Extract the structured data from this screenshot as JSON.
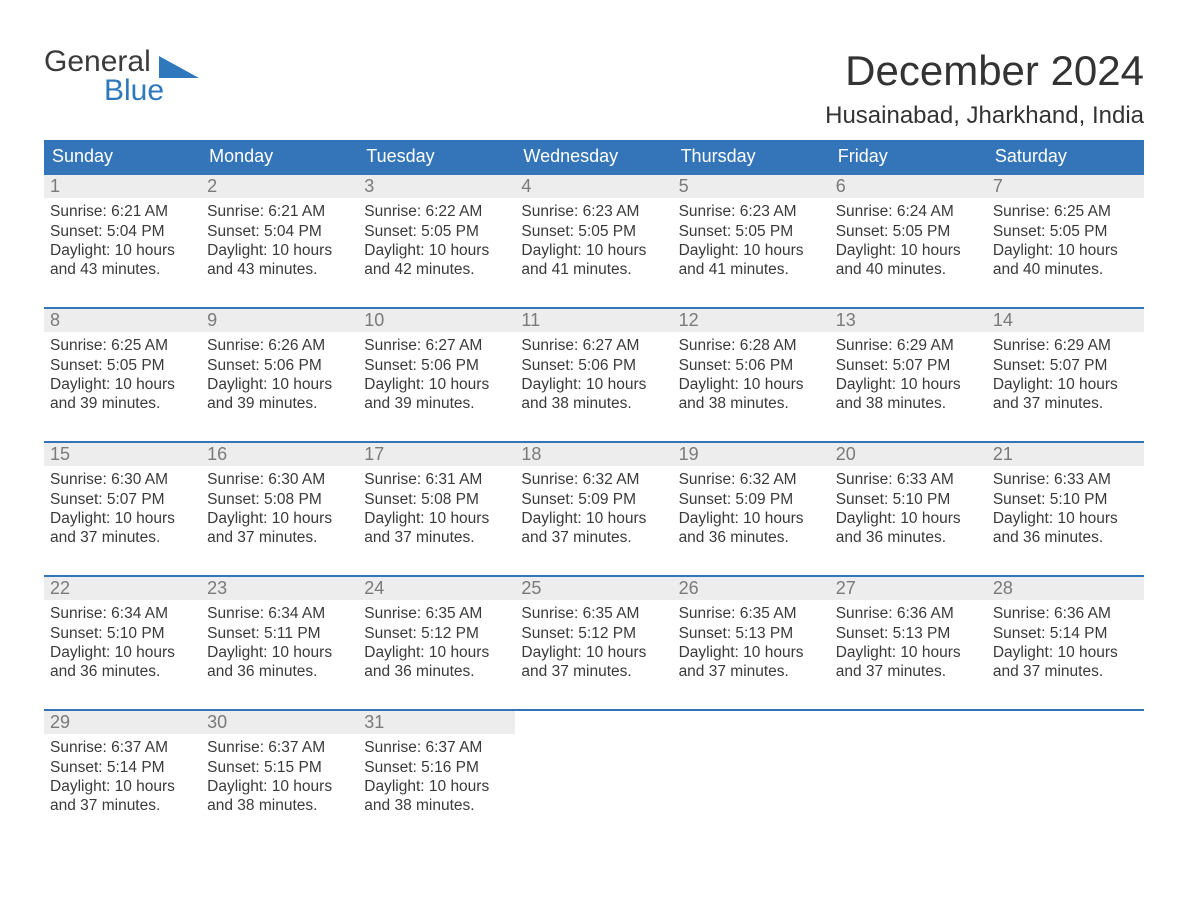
{
  "brand": {
    "line1": "General",
    "line2": "Blue"
  },
  "title": "December 2024",
  "location": "Husainabad, Jharkhand, India",
  "colors": {
    "header_bg": "#3474b8",
    "header_text": "#ffffff",
    "daynum_bg": "#ededed",
    "daynum_text": "#7a7a7a",
    "body_text": "#333333",
    "accent": "#2f78bc",
    "page_bg": "#ffffff"
  },
  "headers": [
    "Sunday",
    "Monday",
    "Tuesday",
    "Wednesday",
    "Thursday",
    "Friday",
    "Saturday"
  ],
  "days": [
    {
      "n": "1",
      "sun": "Sunrise: 6:21 AM",
      "set": "Sunset: 5:04 PM",
      "d1": "Daylight: 10 hours",
      "d2": "and 43 minutes."
    },
    {
      "n": "2",
      "sun": "Sunrise: 6:21 AM",
      "set": "Sunset: 5:04 PM",
      "d1": "Daylight: 10 hours",
      "d2": "and 43 minutes."
    },
    {
      "n": "3",
      "sun": "Sunrise: 6:22 AM",
      "set": "Sunset: 5:05 PM",
      "d1": "Daylight: 10 hours",
      "d2": "and 42 minutes."
    },
    {
      "n": "4",
      "sun": "Sunrise: 6:23 AM",
      "set": "Sunset: 5:05 PM",
      "d1": "Daylight: 10 hours",
      "d2": "and 41 minutes."
    },
    {
      "n": "5",
      "sun": "Sunrise: 6:23 AM",
      "set": "Sunset: 5:05 PM",
      "d1": "Daylight: 10 hours",
      "d2": "and 41 minutes."
    },
    {
      "n": "6",
      "sun": "Sunrise: 6:24 AM",
      "set": "Sunset: 5:05 PM",
      "d1": "Daylight: 10 hours",
      "d2": "and 40 minutes."
    },
    {
      "n": "7",
      "sun": "Sunrise: 6:25 AM",
      "set": "Sunset: 5:05 PM",
      "d1": "Daylight: 10 hours",
      "d2": "and 40 minutes."
    },
    {
      "n": "8",
      "sun": "Sunrise: 6:25 AM",
      "set": "Sunset: 5:05 PM",
      "d1": "Daylight: 10 hours",
      "d2": "and 39 minutes."
    },
    {
      "n": "9",
      "sun": "Sunrise: 6:26 AM",
      "set": "Sunset: 5:06 PM",
      "d1": "Daylight: 10 hours",
      "d2": "and 39 minutes."
    },
    {
      "n": "10",
      "sun": "Sunrise: 6:27 AM",
      "set": "Sunset: 5:06 PM",
      "d1": "Daylight: 10 hours",
      "d2": "and 39 minutes."
    },
    {
      "n": "11",
      "sun": "Sunrise: 6:27 AM",
      "set": "Sunset: 5:06 PM",
      "d1": "Daylight: 10 hours",
      "d2": "and 38 minutes."
    },
    {
      "n": "12",
      "sun": "Sunrise: 6:28 AM",
      "set": "Sunset: 5:06 PM",
      "d1": "Daylight: 10 hours",
      "d2": "and 38 minutes."
    },
    {
      "n": "13",
      "sun": "Sunrise: 6:29 AM",
      "set": "Sunset: 5:07 PM",
      "d1": "Daylight: 10 hours",
      "d2": "and 38 minutes."
    },
    {
      "n": "14",
      "sun": "Sunrise: 6:29 AM",
      "set": "Sunset: 5:07 PM",
      "d1": "Daylight: 10 hours",
      "d2": "and 37 minutes."
    },
    {
      "n": "15",
      "sun": "Sunrise: 6:30 AM",
      "set": "Sunset: 5:07 PM",
      "d1": "Daylight: 10 hours",
      "d2": "and 37 minutes."
    },
    {
      "n": "16",
      "sun": "Sunrise: 6:30 AM",
      "set": "Sunset: 5:08 PM",
      "d1": "Daylight: 10 hours",
      "d2": "and 37 minutes."
    },
    {
      "n": "17",
      "sun": "Sunrise: 6:31 AM",
      "set": "Sunset: 5:08 PM",
      "d1": "Daylight: 10 hours",
      "d2": "and 37 minutes."
    },
    {
      "n": "18",
      "sun": "Sunrise: 6:32 AM",
      "set": "Sunset: 5:09 PM",
      "d1": "Daylight: 10 hours",
      "d2": "and 37 minutes."
    },
    {
      "n": "19",
      "sun": "Sunrise: 6:32 AM",
      "set": "Sunset: 5:09 PM",
      "d1": "Daylight: 10 hours",
      "d2": "and 36 minutes."
    },
    {
      "n": "20",
      "sun": "Sunrise: 6:33 AM",
      "set": "Sunset: 5:10 PM",
      "d1": "Daylight: 10 hours",
      "d2": "and 36 minutes."
    },
    {
      "n": "21",
      "sun": "Sunrise: 6:33 AM",
      "set": "Sunset: 5:10 PM",
      "d1": "Daylight: 10 hours",
      "d2": "and 36 minutes."
    },
    {
      "n": "22",
      "sun": "Sunrise: 6:34 AM",
      "set": "Sunset: 5:10 PM",
      "d1": "Daylight: 10 hours",
      "d2": "and 36 minutes."
    },
    {
      "n": "23",
      "sun": "Sunrise: 6:34 AM",
      "set": "Sunset: 5:11 PM",
      "d1": "Daylight: 10 hours",
      "d2": "and 36 minutes."
    },
    {
      "n": "24",
      "sun": "Sunrise: 6:35 AM",
      "set": "Sunset: 5:12 PM",
      "d1": "Daylight: 10 hours",
      "d2": "and 36 minutes."
    },
    {
      "n": "25",
      "sun": "Sunrise: 6:35 AM",
      "set": "Sunset: 5:12 PM",
      "d1": "Daylight: 10 hours",
      "d2": "and 37 minutes."
    },
    {
      "n": "26",
      "sun": "Sunrise: 6:35 AM",
      "set": "Sunset: 5:13 PM",
      "d1": "Daylight: 10 hours",
      "d2": "and 37 minutes."
    },
    {
      "n": "27",
      "sun": "Sunrise: 6:36 AM",
      "set": "Sunset: 5:13 PM",
      "d1": "Daylight: 10 hours",
      "d2": "and 37 minutes."
    },
    {
      "n": "28",
      "sun": "Sunrise: 6:36 AM",
      "set": "Sunset: 5:14 PM",
      "d1": "Daylight: 10 hours",
      "d2": "and 37 minutes."
    },
    {
      "n": "29",
      "sun": "Sunrise: 6:37 AM",
      "set": "Sunset: 5:14 PM",
      "d1": "Daylight: 10 hours",
      "d2": "and 37 minutes."
    },
    {
      "n": "30",
      "sun": "Sunrise: 6:37 AM",
      "set": "Sunset: 5:15 PM",
      "d1": "Daylight: 10 hours",
      "d2": "and 38 minutes."
    },
    {
      "n": "31",
      "sun": "Sunrise: 6:37 AM",
      "set": "Sunset: 5:16 PM",
      "d1": "Daylight: 10 hours",
      "d2": "and 38 minutes."
    }
  ]
}
